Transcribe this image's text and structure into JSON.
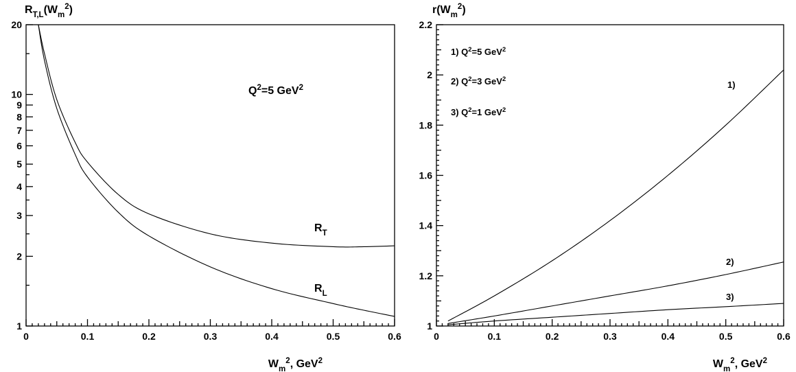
{
  "chart_data": [
    {
      "type": "line",
      "ylabel": "R_{T,L}(W_m^2)",
      "xlabel": "W_m^2, GeV^2",
      "annotation": "Q^2=5 GeV^2",
      "xlim": [
        0,
        0.6
      ],
      "ylim": [
        1,
        20
      ],
      "yscale": "log",
      "x_ticks": [
        "0",
        "0.1",
        "0.2",
        "0.3",
        "0.4",
        "0.5",
        "0.6"
      ],
      "y_ticks": [
        "1",
        "2",
        "3",
        "4",
        "5",
        "6",
        "7",
        "8",
        "9",
        "10",
        "20"
      ],
      "series": [
        {
          "name": "R_T",
          "x": [
            0.02,
            0.03,
            0.05,
            0.08,
            0.1,
            0.15,
            0.2,
            0.3,
            0.4,
            0.5,
            0.55,
            0.6
          ],
          "y": [
            20,
            15,
            9.5,
            6.2,
            5.1,
            3.7,
            3.05,
            2.5,
            2.28,
            2.2,
            2.2,
            2.22
          ]
        },
        {
          "name": "R_L",
          "x": [
            0.02,
            0.03,
            0.05,
            0.08,
            0.1,
            0.15,
            0.2,
            0.3,
            0.4,
            0.5,
            0.55,
            0.6
          ],
          "y": [
            20,
            14,
            8.7,
            5.5,
            4.4,
            3.1,
            2.45,
            1.8,
            1.45,
            1.25,
            1.17,
            1.1
          ]
        }
      ]
    },
    {
      "type": "line",
      "ylabel": "r(W_m^2)",
      "xlabel": "W_m^2, GeV^2",
      "legend": [
        "1) Q^2=5 GeV^2",
        "2) Q^2=3 GeV^2",
        "3) Q^2=1 GeV^2"
      ],
      "xlim": [
        0,
        0.6
      ],
      "ylim": [
        1,
        2.2
      ],
      "x_ticks": [
        "0",
        "0.1",
        "0.2",
        "0.3",
        "0.4",
        "0.5",
        "0.6"
      ],
      "y_ticks": [
        "1",
        "1.2",
        "1.4",
        "1.6",
        "1.8",
        "2",
        "2.2"
      ],
      "series": [
        {
          "name": "1)",
          "x": [
            0.02,
            0.1,
            0.2,
            0.3,
            0.4,
            0.5,
            0.6
          ],
          "y": [
            1.02,
            1.12,
            1.26,
            1.42,
            1.6,
            1.8,
            2.02
          ]
        },
        {
          "name": "2)",
          "x": [
            0.02,
            0.1,
            0.2,
            0.3,
            0.4,
            0.5,
            0.6
          ],
          "y": [
            1.01,
            1.04,
            1.08,
            1.12,
            1.16,
            1.205,
            1.255
          ]
        },
        {
          "name": "3)",
          "x": [
            0.02,
            0.1,
            0.2,
            0.3,
            0.4,
            0.5,
            0.6
          ],
          "y": [
            1.005,
            1.02,
            1.035,
            1.05,
            1.065,
            1.077,
            1.09
          ]
        }
      ]
    }
  ]
}
